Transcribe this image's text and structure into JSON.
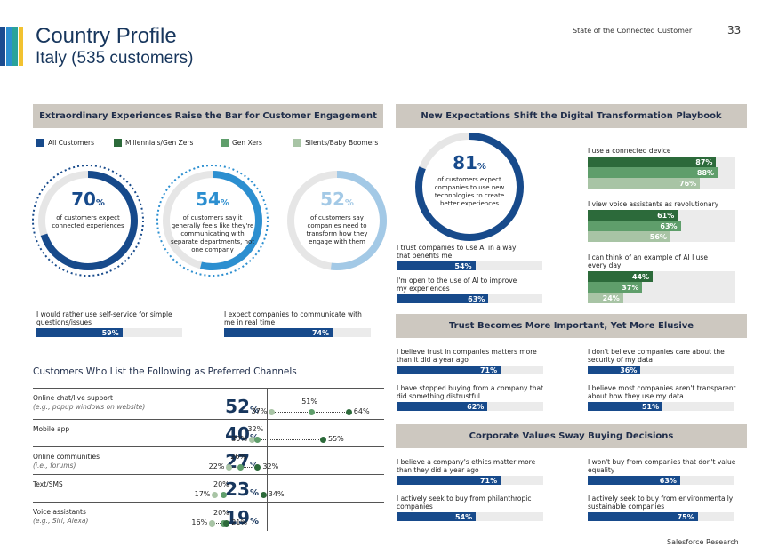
{
  "header": {
    "title": "Country Profile",
    "subtitle": "Italy (535 customers)",
    "publication": "State of the Connected Customer",
    "page_number": "33",
    "footer": "Salesforce Research",
    "accent_colors": [
      "#1b4b8f",
      "#2c8fd0",
      "#2aa39a",
      "#f2c230"
    ]
  },
  "colors": {
    "all": "#174a8b",
    "millennials": "#2c6a3a",
    "genx": "#5f9e6b",
    "silents": "#a8c4a5",
    "bar_track": "#ebebeb",
    "section_bg": "#cdc8c0"
  },
  "legend": [
    {
      "label": "All Customers",
      "color": "#174a8b"
    },
    {
      "label": "Millennials/Gen Zers",
      "color": "#2c6a3a"
    },
    {
      "label": "Gen Xers",
      "color": "#5f9e6b"
    },
    {
      "label": "Silents/Baby Boomers",
      "color": "#a8c4a5"
    }
  ],
  "left": {
    "section_title": "Extraordinary Experiences Raise the Bar for Customer Engagement",
    "donuts": [
      {
        "value": "70",
        "pct": 70,
        "unit": "%",
        "text": "of customers expect connected experiences"
      },
      {
        "value": "54",
        "pct": 54,
        "unit": "%",
        "text": "of customers say it generally feels like they're communicating with separate departments, not one company"
      },
      {
        "value": "52",
        "pct": 52,
        "unit": "%",
        "text": "of customers say companies need to transform how they engage with them"
      }
    ],
    "bars": [
      {
        "label": "I would rather use self-service for simple questions/issues",
        "value": "59%",
        "pct": 59
      },
      {
        "label": "I expect companies to communicate with me in real time",
        "value": "74%",
        "pct": 74
      }
    ],
    "channels_title": "Customers Who List the Following as Preferred Channels",
    "channels": [
      {
        "name": "Online chat/live support",
        "sub": "(e.g., popup windows on website)",
        "value": "52",
        "unit": "%",
        "low": "37%",
        "mid": "51%",
        "high": "64%"
      },
      {
        "name": "Mobile app",
        "sub": "",
        "value": "40",
        "unit": "%",
        "low": "30%",
        "mid": "32%",
        "high": "55%"
      },
      {
        "name": "Online communities",
        "sub": "(i.e., forums)",
        "value": "27",
        "unit": "%",
        "low": "22%",
        "mid": "26%",
        "high": "32%"
      },
      {
        "name": "Text/SMS",
        "sub": "",
        "value": "23",
        "unit": "%",
        "low": "17%",
        "mid": "20%",
        "high": "34%"
      },
      {
        "name": "Voice assistants",
        "sub": "(e.g., Siri, Alexa)",
        "value": "19",
        "unit": "%",
        "low": "16%",
        "mid": "20%",
        "high": "21%"
      }
    ]
  },
  "right": {
    "s1_title": "New Expectations Shift the Digital Transformation Playbook",
    "s1_donut": {
      "value": "81",
      "pct": 81,
      "unit": "%",
      "text": "of customers expect companies to use new technologies to create better experiences"
    },
    "s1_bars": [
      {
        "label": "I trust companies to use AI in a way that benefits me",
        "value": "54%",
        "pct": 54
      },
      {
        "label": "I'm open to the use of AI to improve my experiences",
        "value": "63%",
        "pct": 63
      }
    ],
    "s1_groups": [
      {
        "label": "I use a connected device",
        "values": [
          "87%",
          "88%",
          "76%"
        ],
        "pcts": [
          87,
          88,
          76
        ]
      },
      {
        "label": "I view voice assistants as revolutionary",
        "values": [
          "61%",
          "63%",
          "56%"
        ],
        "pcts": [
          61,
          63,
          56
        ]
      },
      {
        "label": "I can think of an example of AI I use every day",
        "values": [
          "44%",
          "37%",
          "24%"
        ],
        "pcts": [
          44,
          37,
          24
        ]
      }
    ],
    "s2_title": "Trust Becomes More Important, Yet More Elusive",
    "s2_bars": [
      {
        "label": "I believe trust in companies matters more than it did a year ago",
        "value": "71%",
        "pct": 71
      },
      {
        "label": "I don't believe companies care about the security of my data",
        "value": "36%",
        "pct": 36
      },
      {
        "label": "I have stopped buying from a company that did something distrustful",
        "value": "62%",
        "pct": 62
      },
      {
        "label": "I believe most companies aren't transparent about how they use my data",
        "value": "51%",
        "pct": 51
      }
    ],
    "s3_title": "Corporate Values Sway Buying Decisions",
    "s3_bars": [
      {
        "label": "I believe a company's ethics matter more than they did a year ago",
        "value": "71%",
        "pct": 71
      },
      {
        "label": "I won't buy from companies that don't value equality",
        "value": "63%",
        "pct": 63
      },
      {
        "label": "I actively seek to buy from philanthropic companies",
        "value": "54%",
        "pct": 54
      },
      {
        "label": "I actively seek to buy from environmentally sustainable companies",
        "value": "75%",
        "pct": 75
      }
    ]
  }
}
